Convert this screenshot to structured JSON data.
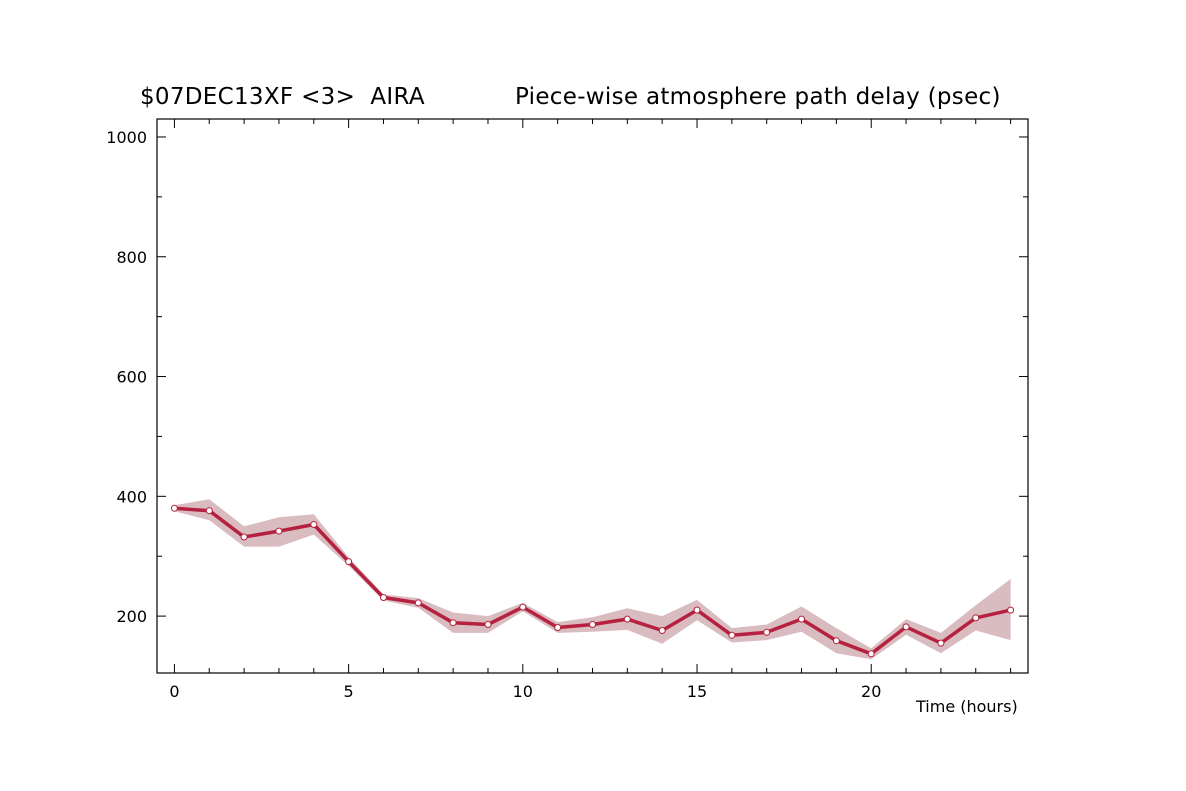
{
  "chart_data": {
    "type": "line",
    "title_left": "$07DEC13XF <3>  AIRA",
    "title_right": "Piece-wise atmosphere path delay (psec)",
    "xlabel": "Time (hours)",
    "ylabel": "",
    "xlim": [
      -0.5,
      24.5
    ],
    "ylim": [
      105,
      1030
    ],
    "x_ticks": [
      0,
      5,
      10,
      15,
      20
    ],
    "y_ticks": [
      200,
      400,
      600,
      800,
      1000
    ],
    "grid": false,
    "colors": {
      "line": "#b5213f",
      "band": "#d9bcc0",
      "marker_fill": "#ffffff"
    },
    "series": [
      {
        "x": [
          0,
          1,
          2,
          3,
          4,
          5,
          6,
          7,
          8,
          9,
          10,
          11,
          12,
          13,
          14,
          15,
          16,
          17,
          18,
          19,
          20,
          21,
          22,
          23,
          24
        ],
        "values": [
          380,
          376,
          332,
          342,
          353,
          291,
          231,
          222,
          189,
          186,
          215,
          181,
          186,
          195,
          176,
          210,
          168,
          173,
          195,
          159,
          137,
          182,
          155,
          197,
          210
        ],
        "upper": [
          385,
          395,
          350,
          365,
          370,
          298,
          236,
          230,
          206,
          200,
          222,
          190,
          198,
          213,
          200,
          227,
          180,
          186,
          216,
          180,
          146,
          195,
          172,
          218,
          262
        ],
        "lower": [
          375,
          360,
          316,
          316,
          336,
          284,
          226,
          214,
          172,
          172,
          208,
          172,
          174,
          177,
          154,
          193,
          156,
          160,
          174,
          138,
          128,
          169,
          138,
          176,
          160
        ]
      }
    ]
  }
}
